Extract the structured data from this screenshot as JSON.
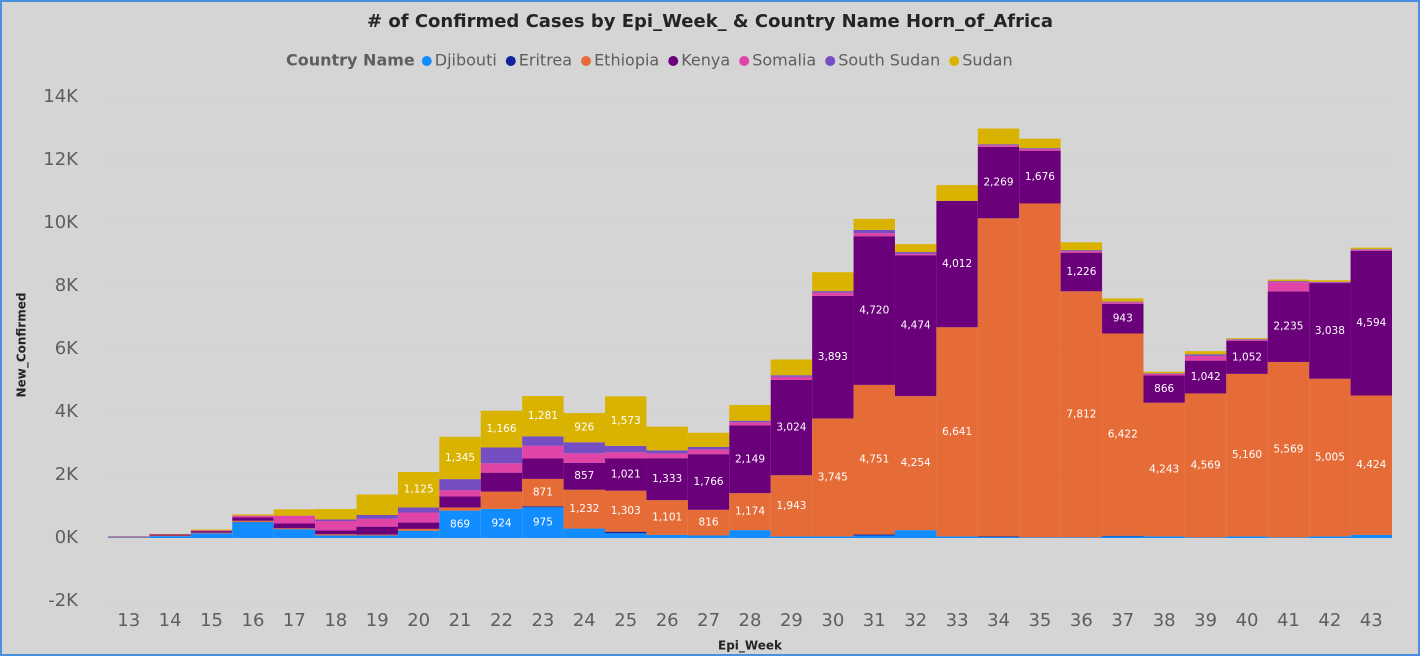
{
  "chart_data": {
    "type": "stacked_bar",
    "title": "# of Confirmed Cases by Epi_Week_ & Country Name Horn_of_Africa",
    "legend_title": "Country Name",
    "x_label": "Epi_Week",
    "y_label": "New_Confirmed",
    "categories": [
      13,
      14,
      15,
      16,
      17,
      18,
      19,
      20,
      21,
      22,
      23,
      24,
      25,
      26,
      27,
      28,
      29,
      30,
      31,
      32,
      33,
      34,
      35,
      36,
      37,
      38,
      39,
      40,
      41,
      42,
      43
    ],
    "ylim": [
      -2000,
      14000
    ],
    "yticks": [
      {
        "value": -2000,
        "label": "-2K"
      },
      {
        "value": 0,
        "label": "0K"
      },
      {
        "value": 2000,
        "label": "2K"
      },
      {
        "value": 4000,
        "label": "4K"
      },
      {
        "value": 6000,
        "label": "6K"
      },
      {
        "value": 8000,
        "label": "8K"
      },
      {
        "value": 10000,
        "label": "10K"
      },
      {
        "value": 12000,
        "label": "12K"
      },
      {
        "value": 14000,
        "label": "14K"
      }
    ],
    "series": [
      {
        "name": "Djibouti",
        "color": "#118dff",
        "values": [
          20,
          60,
          150,
          500,
          280,
          80,
          80,
          230,
          869,
          924,
          975,
          300,
          150,
          100,
          80,
          250,
          50,
          50,
          80,
          250,
          50,
          30,
          20,
          20,
          50,
          50,
          20,
          50,
          20,
          50,
          100
        ],
        "value_labels": [
          null,
          null,
          null,
          null,
          null,
          null,
          null,
          null,
          "869",
          "924",
          "975",
          null,
          null,
          null,
          null,
          null,
          null,
          null,
          null,
          null,
          null,
          null,
          null,
          null,
          null,
          null,
          null,
          null,
          null,
          null,
          null
        ]
      },
      {
        "name": "Eritrea",
        "color": "#12239e",
        "values": [
          0,
          0,
          0,
          10,
          0,
          0,
          0,
          0,
          0,
          0,
          30,
          0,
          50,
          0,
          0,
          0,
          0,
          0,
          30,
          0,
          0,
          20,
          0,
          0,
          20,
          0,
          0,
          0,
          0,
          0,
          0
        ]
      },
      {
        "name": "Ethiopia",
        "color": "#e66c37",
        "values": [
          20,
          20,
          20,
          40,
          30,
          40,
          30,
          60,
          100,
          550,
          871,
          1232,
          1303,
          1101,
          816,
          1174,
          1943,
          3745,
          4751,
          4254,
          6641,
          10100,
          10600,
          7812,
          6422,
          4243,
          4569,
          5160,
          5569,
          5005,
          4424
        ],
        "value_labels": [
          null,
          null,
          null,
          null,
          null,
          null,
          null,
          null,
          null,
          null,
          "871",
          "1,232",
          "1,303",
          "1,101",
          "816",
          "1,174",
          "1,943",
          "3,745",
          "4,751",
          "4,254",
          "6,641",
          null,
          null,
          "7,812",
          "6,422",
          "4,243",
          "4,569",
          "5,160",
          "5,569",
          "5,005",
          "4,424"
        ]
      },
      {
        "name": "Kenya",
        "color": "#6b007b",
        "values": [
          10,
          30,
          50,
          100,
          150,
          120,
          250,
          200,
          350,
          600,
          650,
          857,
          1021,
          1333,
          1766,
          2149,
          3024,
          3893,
          4720,
          4474,
          4012,
          2269,
          1676,
          1226,
          943,
          866,
          1042,
          1052,
          2235,
          3038,
          4594
        ],
        "value_labels": [
          null,
          null,
          null,
          null,
          null,
          null,
          null,
          null,
          null,
          null,
          null,
          "857",
          "1,021",
          "1,333",
          "1,766",
          "2,149",
          "3,024",
          "3,893",
          "4,720",
          "4,474",
          "4,012",
          "2,269",
          "1,676",
          "1,226",
          "943",
          "866",
          "1,042",
          "1,052",
          "2,235",
          "3,038",
          "4,594"
        ]
      },
      {
        "name": "Somalia",
        "color": "#e044a7",
        "values": [
          0,
          10,
          20,
          60,
          250,
          300,
          250,
          320,
          200,
          300,
          400,
          300,
          200,
          150,
          150,
          100,
          100,
          100,
          100,
          50,
          0,
          50,
          50,
          50,
          50,
          50,
          150,
          30,
          300,
          20,
          30
        ]
      },
      {
        "name": "South Sudan",
        "color": "#744ec2",
        "values": [
          0,
          0,
          0,
          0,
          0,
          50,
          120,
          160,
          350,
          500,
          300,
          350,
          200,
          100,
          80,
          50,
          50,
          50,
          100,
          50,
          0,
          30,
          30,
          30,
          20,
          20,
          50,
          20,
          30,
          20,
          20
        ]
      },
      {
        "name": "Sudan",
        "color": "#d9b300",
        "values": [
          0,
          10,
          30,
          40,
          200,
          330,
          650,
          1125,
          1345,
          1166,
          1281,
          926,
          1573,
          750,
          450,
          500,
          500,
          600,
          350,
          250,
          500,
          500,
          300,
          250,
          100,
          50,
          100,
          30,
          50,
          50,
          50
        ],
        "value_labels": [
          null,
          null,
          null,
          null,
          null,
          null,
          null,
          "1,125",
          "1,345",
          "1,166",
          "1,281",
          "926",
          "1,573",
          null,
          null,
          null,
          null,
          null,
          null,
          null,
          null,
          null,
          null,
          null,
          null,
          null,
          null,
          null,
          null,
          null,
          null
        ]
      }
    ],
    "grid": true,
    "legend": "top"
  }
}
